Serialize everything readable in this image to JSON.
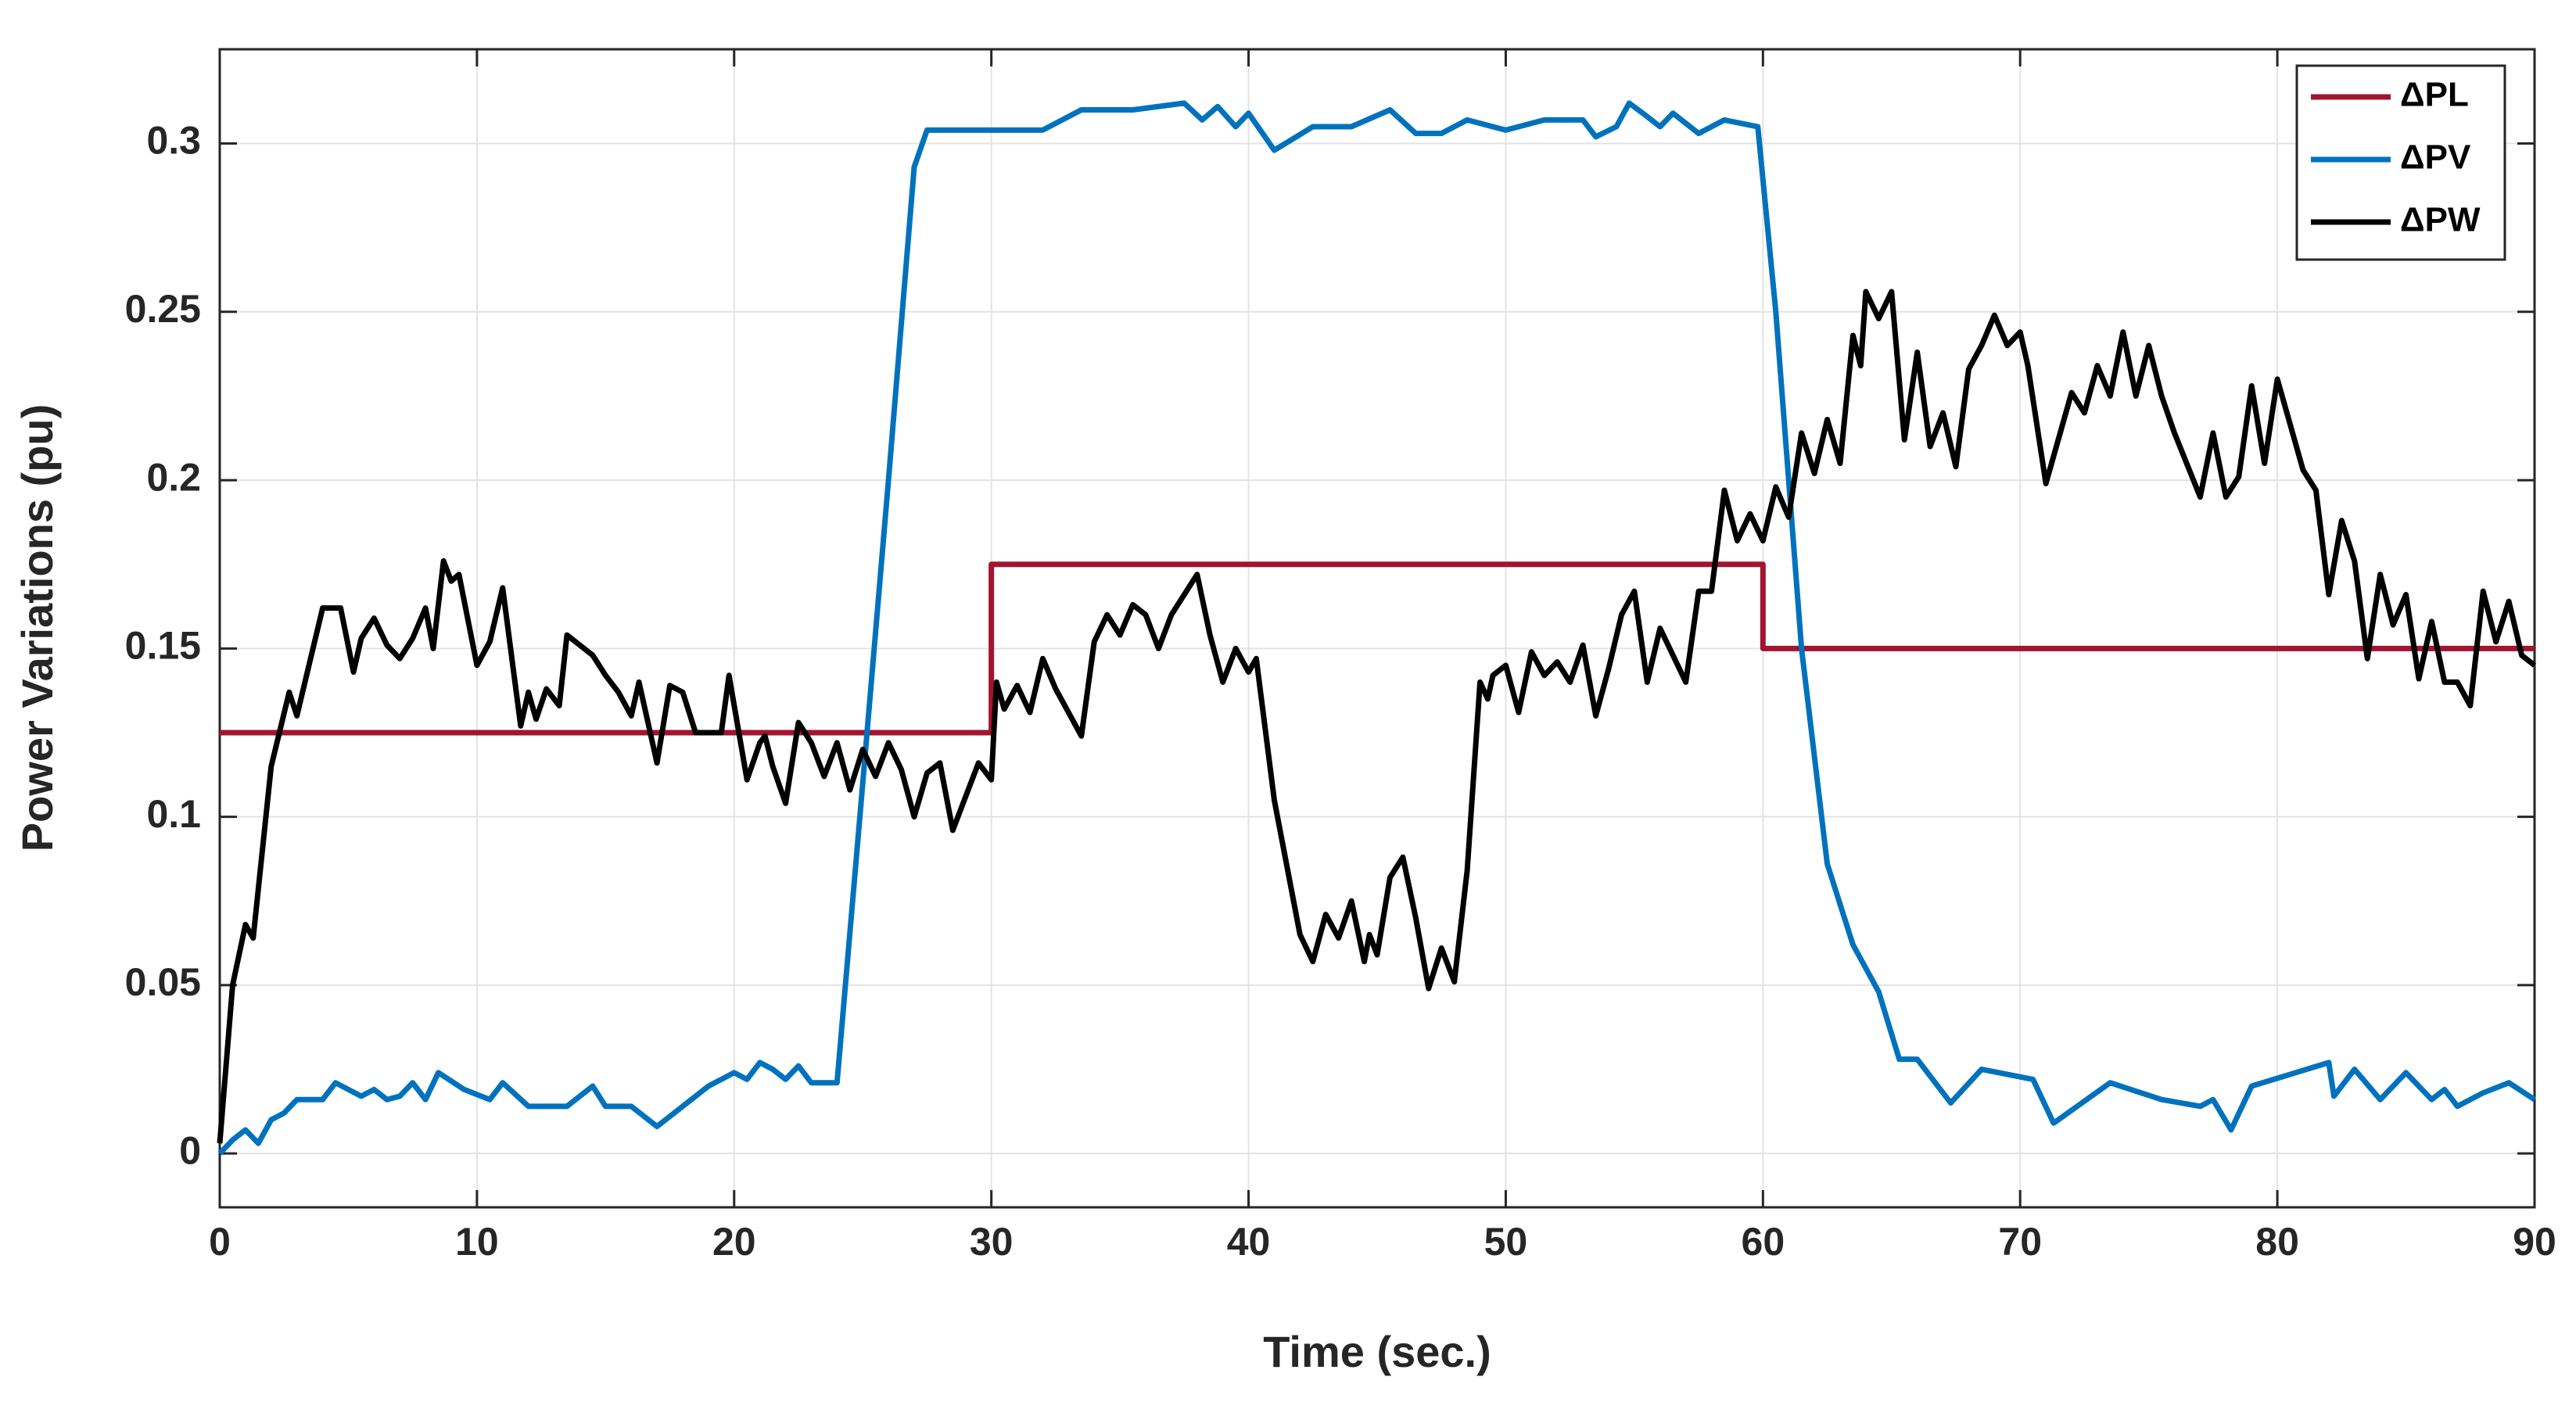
{
  "chart_data": {
    "type": "line",
    "xlabel": "Time (sec.)",
    "ylabel": "Power Variations (pu)",
    "xlim": [
      0,
      90
    ],
    "ylim": [
      -0.016,
      0.328
    ],
    "xticks": [
      0,
      10,
      20,
      30,
      40,
      50,
      60,
      70,
      80,
      90
    ],
    "yticks": [
      0,
      0.05,
      0.1,
      0.15,
      0.2,
      0.25,
      0.3
    ],
    "grid": true,
    "legend": "upper right",
    "series": [
      {
        "name": "ΔPL",
        "color": "#a2142f",
        "x": [
          0,
          30,
          30,
          60,
          60,
          90
        ],
        "values": [
          0.125,
          0.125,
          0.175,
          0.175,
          0.15,
          0.15
        ]
      },
      {
        "name": "ΔPV",
        "color": "#0072bd",
        "x": [
          0,
          0.5,
          1,
          1.5,
          2,
          2.5,
          3,
          4,
          4.5,
          5,
          5.5,
          6,
          6.5,
          7,
          7.5,
          8,
          8.5,
          9.5,
          10.5,
          11,
          12,
          13.5,
          14.5,
          15,
          16,
          17,
          18,
          19,
          20,
          20.5,
          21,
          21.5,
          22,
          22.5,
          23,
          24,
          25,
          26,
          27,
          27.5,
          30,
          32,
          33.5,
          35.5,
          37.5,
          38.2,
          38.8,
          39.5,
          40,
          41,
          42.5,
          44,
          45.5,
          46.5,
          47.5,
          48.5,
          50,
          51.5,
          53,
          53.5,
          54.3,
          54.8,
          55.5,
          56,
          56.5,
          57.5,
          58.5,
          59.8,
          60.5,
          61.5,
          62.5,
          63.5,
          64.5,
          65.3,
          66,
          67.3,
          68.5,
          70.5,
          71.3,
          73.5,
          75.5,
          77,
          77.5,
          78.2,
          79,
          82,
          82.2,
          83,
          84,
          85,
          86,
          86.5,
          87,
          88,
          89,
          90
        ],
        "values": [
          0,
          0.004,
          0.007,
          0.003,
          0.01,
          0.012,
          0.016,
          0.016,
          0.021,
          0.019,
          0.017,
          0.019,
          0.016,
          0.017,
          0.021,
          0.016,
          0.024,
          0.019,
          0.016,
          0.021,
          0.014,
          0.014,
          0.02,
          0.014,
          0.014,
          0.008,
          0.014,
          0.02,
          0.024,
          0.022,
          0.027,
          0.025,
          0.022,
          0.026,
          0.021,
          0.021,
          0.11,
          0.2,
          0.293,
          0.304,
          0.304,
          0.304,
          0.31,
          0.31,
          0.312,
          0.307,
          0.311,
          0.305,
          0.309,
          0.298,
          0.305,
          0.305,
          0.31,
          0.303,
          0.303,
          0.307,
          0.304,
          0.307,
          0.307,
          0.302,
          0.305,
          0.312,
          0.308,
          0.305,
          0.309,
          0.303,
          0.307,
          0.305,
          0.25,
          0.15,
          0.086,
          0.062,
          0.048,
          0.028,
          0.028,
          0.015,
          0.025,
          0.022,
          0.009,
          0.021,
          0.016,
          0.014,
          0.016,
          0.007,
          0.02,
          0.027,
          0.017,
          0.025,
          0.016,
          0.024,
          0.016,
          0.019,
          0.014,
          0.018,
          0.021,
          0.016
        ]
      },
      {
        "name": "ΔPW",
        "color": "#000000",
        "x": [
          0,
          0.5,
          1,
          1.3,
          2,
          2.7,
          3,
          4,
          4.7,
          5.2,
          5.5,
          6,
          6.5,
          7,
          7.5,
          8,
          8.3,
          8.7,
          9,
          9.3,
          10,
          10.5,
          11,
          11.7,
          12,
          12.3,
          12.7,
          13.2,
          13.5,
          14.5,
          15,
          15.5,
          16,
          16.3,
          17,
          17.5,
          18,
          18.5,
          19.5,
          19.8,
          20.5,
          21,
          21.2,
          21.5,
          22,
          22.5,
          23,
          23.5,
          24,
          24.5,
          25,
          25.5,
          26,
          26.5,
          27,
          27.5,
          28,
          28.5,
          29,
          29.5,
          30,
          30.2,
          30.5,
          31,
          31.5,
          32,
          32.5,
          33,
          33.5,
          34,
          34.5,
          35,
          35.5,
          36,
          36.5,
          37,
          37.5,
          38,
          38.5,
          39,
          39.5,
          40,
          40.3,
          41,
          42,
          42.5,
          43,
          43.5,
          44,
          44.5,
          44.7,
          45,
          45.5,
          46,
          46.5,
          47,
          47.5,
          48,
          48.5,
          49,
          49.3,
          49.5,
          50,
          50.5,
          51,
          51.5,
          52,
          52.5,
          53,
          53.5,
          54,
          54.5,
          55,
          55.5,
          56,
          57,
          57.5,
          58,
          58.5,
          59,
          59.5,
          60,
          60.5,
          61,
          61.5,
          62,
          62.5,
          63,
          63.5,
          63.8,
          64,
          64.5,
          65,
          65.5,
          66,
          66.5,
          67,
          67.5,
          68,
          68.5,
          69,
          69.5,
          70,
          70.3,
          71,
          72,
          72.5,
          73,
          73.5,
          74,
          74.5,
          75,
          75.5,
          76,
          77,
          77.5,
          78,
          78.5,
          79,
          79.5,
          80,
          81,
          81.5,
          82,
          82.5,
          83,
          83.5,
          84,
          84.5,
          85,
          85.5,
          86,
          86.5,
          87,
          87.5,
          88,
          88.5,
          89,
          89.5,
          90
        ],
        "values": [
          0.003,
          0.05,
          0.068,
          0.064,
          0.115,
          0.137,
          0.13,
          0.162,
          0.162,
          0.143,
          0.153,
          0.159,
          0.151,
          0.147,
          0.153,
          0.162,
          0.15,
          0.176,
          0.17,
          0.172,
          0.145,
          0.152,
          0.168,
          0.127,
          0.137,
          0.129,
          0.138,
          0.133,
          0.154,
          0.148,
          0.142,
          0.137,
          0.13,
          0.14,
          0.116,
          0.139,
          0.137,
          0.125,
          0.125,
          0.142,
          0.111,
          0.122,
          0.124,
          0.115,
          0.104,
          0.128,
          0.122,
          0.112,
          0.122,
          0.108,
          0.12,
          0.112,
          0.122,
          0.114,
          0.1,
          0.113,
          0.116,
          0.096,
          0.106,
          0.116,
          0.111,
          0.14,
          0.132,
          0.139,
          0.131,
          0.147,
          0.138,
          0.131,
          0.124,
          0.152,
          0.16,
          0.154,
          0.163,
          0.16,
          0.15,
          0.16,
          0.166,
          0.172,
          0.154,
          0.14,
          0.15,
          0.143,
          0.147,
          0.105,
          0.065,
          0.057,
          0.071,
          0.064,
          0.075,
          0.057,
          0.065,
          0.059,
          0.082,
          0.088,
          0.07,
          0.049,
          0.061,
          0.051,
          0.084,
          0.14,
          0.135,
          0.142,
          0.145,
          0.131,
          0.149,
          0.142,
          0.146,
          0.14,
          0.151,
          0.13,
          0.144,
          0.16,
          0.167,
          0.14,
          0.156,
          0.14,
          0.167,
          0.167,
          0.197,
          0.182,
          0.19,
          0.182,
          0.198,
          0.189,
          0.214,
          0.202,
          0.218,
          0.205,
          0.243,
          0.234,
          0.256,
          0.248,
          0.256,
          0.212,
          0.238,
          0.21,
          0.22,
          0.204,
          0.233,
          0.24,
          0.249,
          0.24,
          0.244,
          0.234,
          0.199,
          0.226,
          0.22,
          0.234,
          0.225,
          0.244,
          0.225,
          0.24,
          0.225,
          0.214,
          0.195,
          0.214,
          0.195,
          0.201,
          0.228,
          0.205,
          0.23,
          0.203,
          0.197,
          0.166,
          0.188,
          0.176,
          0.147,
          0.172,
          0.157,
          0.166,
          0.141,
          0.158,
          0.14,
          0.14,
          0.133,
          0.167,
          0.152,
          0.164,
          0.148,
          0.145
        ]
      }
    ]
  }
}
